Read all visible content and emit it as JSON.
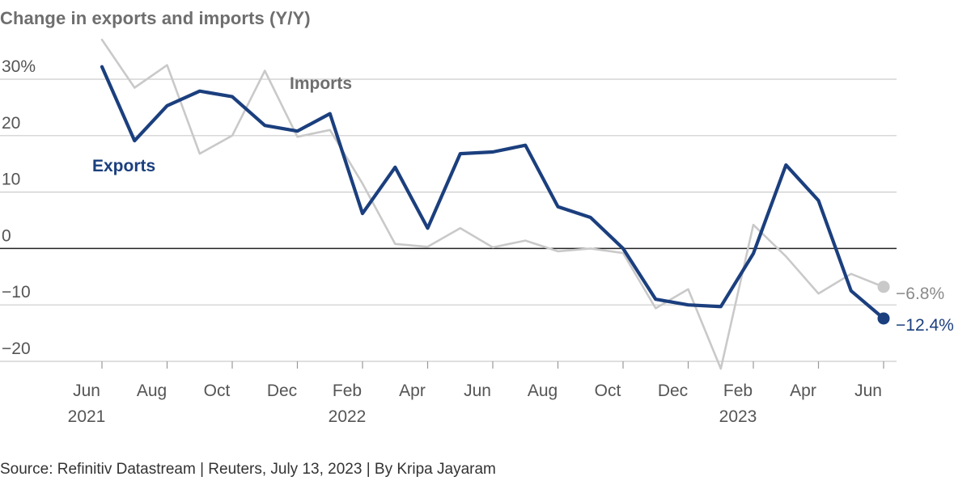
{
  "title": "Change in exports and imports (Y/Y)",
  "source": "Source: Refinitiv Datastream | Reuters, July 13, 2023 | By Kripa Jayaram",
  "colors": {
    "exports": "#1b3f7e",
    "imports": "#c9c9c9",
    "gridline": "#cccccc",
    "zeroline": "#222222",
    "text": "#555555"
  },
  "chart_data": {
    "type": "line",
    "title": "Change in exports and imports (Y/Y)",
    "xlabel": "",
    "ylabel": "",
    "x": [
      "2021-06",
      "2021-07",
      "2021-08",
      "2021-09",
      "2021-10",
      "2021-11",
      "2021-12",
      "2022-01",
      "2022-02",
      "2022-03",
      "2022-04",
      "2022-05",
      "2022-06",
      "2022-07",
      "2022-08",
      "2022-09",
      "2022-10",
      "2022-11",
      "2022-12",
      "2023-01",
      "2023-02",
      "2023-03",
      "2023-04",
      "2023-05",
      "2023-06"
    ],
    "ylim": [
      -20,
      30
    ],
    "yticks": [
      {
        "value": 30,
        "label": "30%"
      },
      {
        "value": 20,
        "label": "20"
      },
      {
        "value": 10,
        "label": "10"
      },
      {
        "value": 0,
        "label": "0"
      },
      {
        "value": -10,
        "label": "-10"
      },
      {
        "value": -20,
        "label": "-20"
      }
    ],
    "xticks": [
      {
        "x": "2021-06",
        "label": "Jun",
        "year": "2021"
      },
      {
        "x": "2021-08",
        "label": "Aug",
        "year": ""
      },
      {
        "x": "2021-10",
        "label": "Oct",
        "year": ""
      },
      {
        "x": "2021-12",
        "label": "Dec",
        "year": ""
      },
      {
        "x": "2022-02",
        "label": "Feb",
        "year": "2022"
      },
      {
        "x": "2022-04",
        "label": "Apr",
        "year": ""
      },
      {
        "x": "2022-06",
        "label": "Jun",
        "year": ""
      },
      {
        "x": "2022-08",
        "label": "Aug",
        "year": ""
      },
      {
        "x": "2022-10",
        "label": "Oct",
        "year": ""
      },
      {
        "x": "2022-12",
        "label": "Dec",
        "year": ""
      },
      {
        "x": "2023-02",
        "label": "Feb",
        "year": "2023"
      },
      {
        "x": "2023-04",
        "label": "Apr",
        "year": ""
      },
      {
        "x": "2023-06",
        "label": "Jun",
        "year": ""
      }
    ],
    "grid": true,
    "series": [
      {
        "name": "Imports",
        "color": "#c9c9c9",
        "values": [
          37.0,
          28.5,
          32.5,
          16.8,
          20.0,
          31.5,
          19.8,
          21.0,
          11.5,
          0.8,
          0.3,
          3.6,
          0.2,
          1.4,
          -0.5,
          0.0,
          -0.8,
          -10.6,
          -7.2,
          -21.3,
          4.2,
          -1.4,
          -8.0,
          -4.5,
          -6.8
        ],
        "end_label": "-6.8%",
        "end_marker": true
      },
      {
        "name": "Exports",
        "color": "#1b3f7e",
        "values": [
          32.2,
          19.1,
          25.3,
          27.9,
          26.9,
          21.8,
          20.8,
          23.9,
          6.2,
          14.4,
          3.6,
          16.8,
          17.1,
          18.3,
          7.4,
          5.5,
          0.0,
          -9.0,
          -10.0,
          -10.3,
          -0.9,
          14.8,
          8.5,
          -7.5,
          -12.4
        ],
        "end_label": "-12.4%",
        "end_marker": true
      }
    ]
  }
}
